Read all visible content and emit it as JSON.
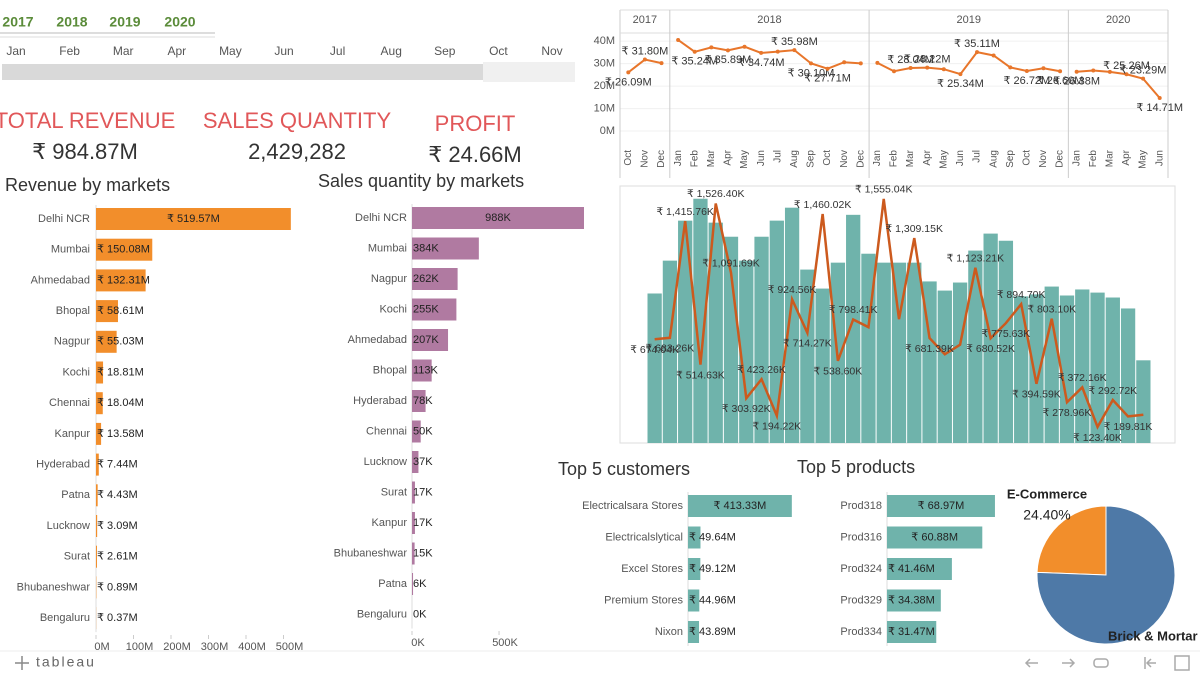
{
  "filters": {
    "years": [
      "2017",
      "2018",
      "2019",
      "2020"
    ],
    "months": [
      "Jan",
      "Feb",
      "Mar",
      "Apr",
      "May",
      "Jun",
      "Jul",
      "Aug",
      "Sep",
      "Oct",
      "Nov"
    ]
  },
  "kpis": [
    {
      "label": "TOTAL REVENUE",
      "value": "₹ 984.87M"
    },
    {
      "label": "SALES QUANTITY",
      "value": "2,429,282"
    },
    {
      "label": "PROFIT",
      "value": "₹ 24.66M"
    }
  ],
  "chart_data": [
    {
      "type": "hbar",
      "title": "Revenue by markets",
      "color": "#f28e2b",
      "categories": [
        "Delhi NCR",
        "Mumbai",
        "Ahmedabad",
        "Bhopal",
        "Nagpur",
        "Kochi",
        "Chennai",
        "Kanpur",
        "Hyderabad",
        "Patna",
        "Lucknow",
        "Surat",
        "Bhubaneshwar",
        "Bengaluru"
      ],
      "values": [
        519.57,
        150.08,
        132.31,
        58.61,
        55.03,
        18.81,
        18.04,
        13.58,
        7.44,
        4.43,
        3.09,
        2.61,
        0.89,
        0.37
      ],
      "value_labels": [
        "₹ 519.57M",
        "₹ 150.08M",
        "₹ 132.31M",
        "₹ 58.61M",
        "₹ 55.03M",
        "₹ 18.81M",
        "₹ 18.04M",
        "₹ 13.58M",
        "₹ 7.44M",
        "₹ 4.43M",
        "₹ 3.09M",
        "₹ 2.61M",
        "₹ 0.89M",
        "₹ 0.37M"
      ],
      "xlim": [
        0,
        520
      ],
      "xticks": [
        {
          "value": 0,
          "label": "0M"
        },
        {
          "value": 100,
          "label": "100M"
        },
        {
          "value": 200,
          "label": "200M"
        },
        {
          "value": 300,
          "label": "300M"
        },
        {
          "value": 400,
          "label": "400M"
        },
        {
          "value": 500,
          "label": "500M"
        }
      ]
    },
    {
      "type": "hbar",
      "title": "Sales quantity by markets",
      "color": "#b07aa1",
      "categories": [
        "Delhi NCR",
        "Mumbai",
        "Nagpur",
        "Kochi",
        "Ahmedabad",
        "Bhopal",
        "Hyderabad",
        "Chennai",
        "Lucknow",
        "Surat",
        "Kanpur",
        "Bhubaneshwar",
        "Patna",
        "Bengaluru"
      ],
      "values": [
        988,
        384,
        262,
        255,
        207,
        113,
        78,
        50,
        37,
        17,
        17,
        15,
        6,
        0
      ],
      "value_labels": [
        "988K",
        "384K",
        "262K",
        "255K",
        "207K",
        "113K",
        "78K",
        "50K",
        "37K",
        "17K",
        "17K",
        "15K",
        "6K",
        "0K"
      ],
      "xlim": [
        0,
        988
      ],
      "xticks": [
        {
          "value": 0,
          "label": "0K"
        },
        {
          "value": 500,
          "label": "500K"
        }
      ]
    },
    {
      "type": "line",
      "color": "#e8762b",
      "groups": [
        {
          "name": "2017",
          "categories": [
            "Oct",
            "Nov",
            "Dec"
          ]
        },
        {
          "name": "2018",
          "categories": [
            "Jan",
            "Feb",
            "Mar",
            "Apr",
            "May",
            "Jun",
            "Jul",
            "Aug",
            "Sep",
            "Oct",
            "Nov",
            "Dec"
          ]
        },
        {
          "name": "2019",
          "categories": [
            "Jan",
            "Feb",
            "Mar",
            "Apr",
            "May",
            "Jun",
            "Jul",
            "Aug",
            "Sep",
            "Oct",
            "Nov",
            "Dec"
          ]
        },
        {
          "name": "2020",
          "categories": [
            "Jan",
            "Feb",
            "Mar",
            "Apr",
            "May",
            "Jun"
          ]
        }
      ],
      "values": [
        26.09,
        31.8,
        30.2,
        40.5,
        35.24,
        37.2,
        35.89,
        37.5,
        34.74,
        35.3,
        35.98,
        30.1,
        27.71,
        30.6,
        30.1,
        30.3,
        26.6,
        28.04,
        28.22,
        27.5,
        25.34,
        35.11,
        33.6,
        28.3,
        26.72,
        27.9,
        26.6,
        26.38,
        26.9,
        26.3,
        25.26,
        23.29,
        14.71
      ],
      "value_labels": [
        "₹ 26.09M",
        "₹ 31.80M",
        null,
        null,
        "₹ 35.24M",
        null,
        "₹ 35.89M",
        null,
        "₹ 34.74M",
        null,
        "₹ 35.98M",
        "₹ 30.10M",
        "₹ 27.71M",
        null,
        null,
        null,
        null,
        "₹ 28.04M",
        "₹ 28.22M",
        null,
        "₹ 25.34M",
        "₹ 35.11M",
        null,
        null,
        "₹ 26.72M",
        null,
        "₹ 26.60M",
        "₹ 26.38M",
        null,
        null,
        "₹ 25.26M",
        "₹ 23.29M",
        "₹ 14.71M"
      ],
      "ylim": [
        -6.2,
        43.6
      ],
      "yticks": [
        {
          "value": 0,
          "label": "0M"
        },
        {
          "value": 10,
          "label": "10M"
        },
        {
          "value": 20,
          "label": "20M"
        },
        {
          "value": 30,
          "label": "30M"
        },
        {
          "value": 40,
          "label": "40M"
        }
      ]
    },
    {
      "type": "combo",
      "ylim": [
        23,
        1636
      ],
      "y2lim": [
        0,
        115000
      ],
      "series": [
        {
          "color": "#6fb3ab",
          "axis": "y2",
          "values": [
            66900,
            81600,
            99500,
            109300,
            98600,
            92300,
            81600,
            92300,
            99500,
            105300,
            77600,
            69100,
            80700,
            102100,
            84700,
            80700,
            80700,
            80700,
            72300,
            68200,
            71800,
            86100,
            93700,
            90500,
            65600,
            66500,
            70000,
            66000,
            68700,
            67300,
            65100,
            60200,
            37000
          ]
        },
        {
          "color": "#cc5a1e",
          "values": [
            674.04,
            683.26,
            1415.76,
            514.63,
            1526.4,
            1091.69,
            303.92,
            423.26,
            194.22,
            924.56,
            714.27,
            1460.02,
            538.6,
            798.41,
            750,
            1555.04,
            800,
            1309.15,
            681.39,
            580,
            640,
            1123.21,
            680.52,
            775.63,
            894.7,
            394.59,
            803.1,
            278.96,
            372.16,
            123.4,
            292.72,
            189.81,
            200
          ],
          "value_labels": [
            "₹ 674.04K",
            "₹ 683.26K",
            "₹ 1,415.76K",
            "₹ 514.63K",
            "₹ 1,526.40K",
            "₹ 1,091.69K",
            "₹ 303.92K",
            "₹ 423.26K",
            "₹ 194.22K",
            "₹ 924.56K",
            "₹ 714.27K",
            "₹ 1,460.02K",
            "₹ 538.60K",
            "₹ 798.41K",
            null,
            "₹ 1,555.04K",
            null,
            "₹ 1,309.15K",
            "₹ 681.39K",
            null,
            null,
            "₹ 1,123.21K",
            "₹ 680.52K",
            "₹ 775.63K",
            "₹ 894.70K",
            "₹ 394.59K",
            "₹ 803.10K",
            "₹ 278.96K",
            "₹ 372.16K",
            "₹ 123.40K",
            "₹ 292.72K",
            "₹ 189.81K",
            null
          ]
        }
      ]
    },
    {
      "type": "hbar",
      "title": "Top 5 customers",
      "color": "#6fb3ab",
      "categories": [
        "Electricalsara Stores",
        "Electricalslytical",
        "Excel Stores",
        "Premium Stores",
        "Nixon"
      ],
      "values": [
        413.33,
        49.64,
        49.12,
        44.96,
        43.89
      ],
      "value_labels": [
        "₹ 413.33M",
        "₹ 49.64M",
        "₹ 49.12M",
        "₹ 44.96M",
        "₹ 43.89M"
      ],
      "xlim": [
        0,
        414
      ]
    },
    {
      "type": "hbar",
      "title": "Top 5 products",
      "color": "#6fb3ab",
      "categories": [
        "Prod318",
        "Prod316",
        "Prod324",
        "Prod329",
        "Prod334"
      ],
      "values": [
        68.97,
        60.88,
        41.46,
        34.38,
        31.47
      ],
      "value_labels": [
        "₹ 68.97M",
        "₹ 60.88M",
        "₹ 41.46M",
        "₹ 34.38M",
        "₹ 31.47M"
      ],
      "xlim": [
        0,
        69
      ]
    },
    {
      "type": "pie",
      "categories": [
        "E-Commerce",
        "Brick & Mortar"
      ],
      "values": [
        24.4,
        75.6
      ],
      "value_labels": [
        "24.40%",
        null
      ],
      "colors": [
        "#f28e2b",
        "#4e79a7"
      ]
    }
  ],
  "footer": {
    "brand": "tableau"
  }
}
